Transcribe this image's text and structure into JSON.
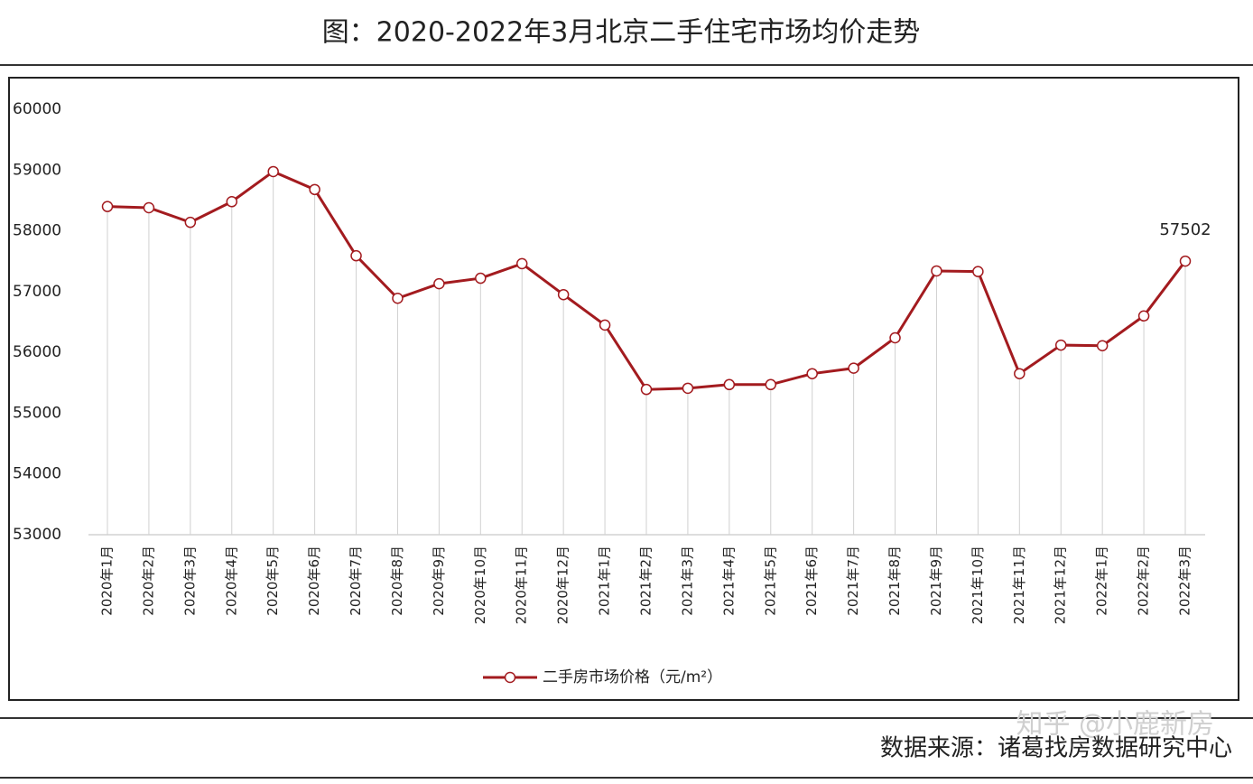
{
  "chart_data": {
    "type": "line",
    "title": "图：2020-2022年3月北京二手住宅市场均价走势",
    "categories": [
      "2020年1月",
      "2020年2月",
      "2020年3月",
      "2020年4月",
      "2020年5月",
      "2020年6月",
      "2020年7月",
      "2020年8月",
      "2020年9月",
      "2020年10月",
      "2020年11月",
      "2020年12月",
      "2021年1月",
      "2021年2月",
      "2021年3月",
      "2021年4月",
      "2021年5月",
      "2021年6月",
      "2021年7月",
      "2021年8月",
      "2021年9月",
      "2021年10月",
      "2021年11月",
      "2021年12月",
      "2022年1月",
      "2022年2月",
      "2022年3月"
    ],
    "series": [
      {
        "name": "二手房市场价格（元/m²）",
        "color": "#a31b1f",
        "values": [
          58400,
          58380,
          58140,
          58480,
          58975,
          58680,
          57590,
          56890,
          57130,
          57220,
          57460,
          56950,
          56450,
          55390,
          55410,
          55470,
          55470,
          55650,
          55740,
          56240,
          57340,
          57330,
          55650,
          56120,
          56110,
          56600,
          57502
        ]
      }
    ],
    "ylim": [
      53000,
      60000
    ],
    "yticks": [
      53000,
      54000,
      55000,
      56000,
      57000,
      58000,
      59000,
      60000
    ],
    "grid": false,
    "source": "数据来源：诸葛找房数据研究中心",
    "watermark": "知乎 @小鹿新房"
  }
}
